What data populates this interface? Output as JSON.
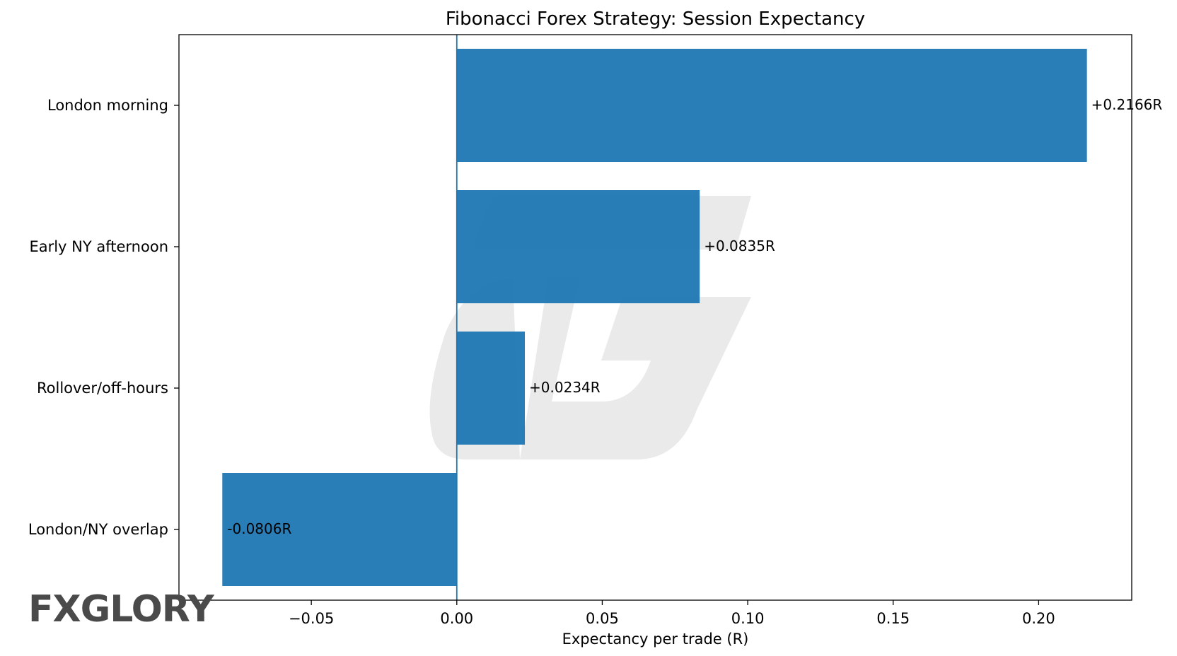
{
  "chart_data": {
    "type": "bar",
    "orientation": "horizontal",
    "title": "Fibonacci Forex Strategy: Session Expectancy",
    "xlabel": "Expectancy per trade (R)",
    "ylabel": "",
    "categories": [
      "London morning",
      "Early NY afternoon",
      "Rollover/off-hours",
      "London/NY overlap"
    ],
    "values": [
      0.2166,
      0.0835,
      0.0234,
      -0.0806
    ],
    "data_labels": [
      "+0.2166R",
      "+0.0835R",
      "+0.0234R",
      "-0.0806R"
    ],
    "xlim": [
      -0.0955,
      0.232
    ],
    "xticks": [
      -0.05,
      0.0,
      0.05,
      0.1,
      0.15,
      0.2
    ],
    "xtick_labels": [
      "−0.05",
      "0.00",
      "0.05",
      "0.10",
      "0.15",
      "0.20"
    ],
    "grid": false,
    "zero_line": true,
    "colors": {
      "bar": "#1f77b4",
      "axis": "#000000",
      "text": "#000000"
    }
  },
  "watermark": {
    "brand_text_pre": "FX",
    "brand_text_accent": "",
    "brand_text_post": "GLORY",
    "watermark_color": "#e6e6e6"
  }
}
